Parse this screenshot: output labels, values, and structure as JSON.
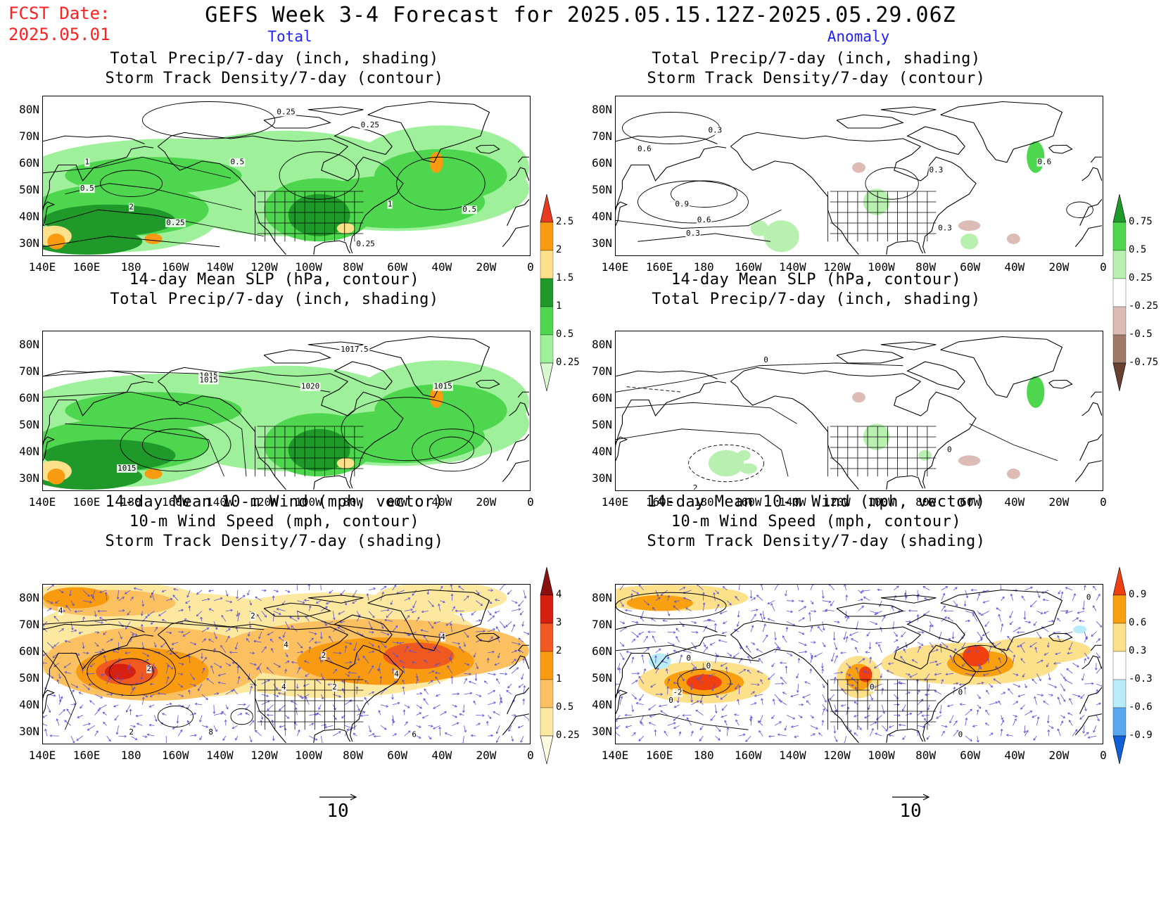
{
  "header": {
    "fcst_line1": "FCST Date:",
    "fcst_line2": "2025.05.01",
    "title": "GEFS Week 3-4 Forecast for 2025.05.15.12Z-2025.05.29.06Z",
    "col_total": "Total",
    "col_anomaly": "Anomaly"
  },
  "axes": {
    "lat_labels": [
      "80N",
      "70N",
      "60N",
      "50N",
      "40N",
      "30N"
    ],
    "lon_labels": [
      "140E",
      "160E",
      "180",
      "160W",
      "140W",
      "120W",
      "100W",
      "80W",
      "60W",
      "40W",
      "20W",
      "0"
    ]
  },
  "panels": {
    "p1": {
      "title1": "Total Precip/7-day (inch, shading)",
      "title2": "Storm Track Density/7-day (contour)"
    },
    "p2": {
      "title1": "Total Precip/7-day (inch, shading)",
      "title2": "Storm Track Density/7-day (contour)"
    },
    "p3": {
      "title1": "14-day Mean SLP (hPa, contour)",
      "title2": "Total Precip/7-day (inch, shading)"
    },
    "p4": {
      "title1": "14-day Mean SLP (hPa, contour)",
      "title2": "Total Precip/7-day (inch, shading)"
    },
    "p5": {
      "title1": "14-day Mean 10-m Wind (mph, vector)",
      "title2": "10-m Wind Speed (mph, contour)",
      "title3": "Storm Track Density/7-day (shading)"
    },
    "p6": {
      "title1": "14-day Mean 10-m Wind (mph, vector)",
      "title2": "10-m Wind Speed (mph, contour)",
      "title3": "Storm Track Density/7-day (shading)"
    }
  },
  "contour_labels": {
    "p1": [
      "0.25",
      "0.5",
      "1",
      "2",
      "0.25",
      "0.5",
      "1",
      "0.5",
      "0.25",
      "0.25"
    ],
    "p2": [
      "0.3",
      "0.6",
      "0.9",
      "0.6",
      "0.3",
      "0.3",
      "0.6",
      "0.3"
    ],
    "p3": [
      "1017.5",
      "1015",
      "1015",
      "1020",
      "1015",
      "1015"
    ],
    "p4": [
      "0",
      "0",
      "2"
    ],
    "p5": [
      "4",
      "2",
      "2",
      "4",
      "2",
      "4",
      "2",
      "4",
      "6",
      "8",
      "2",
      "4"
    ],
    "p6": [
      "0",
      "0",
      "-2",
      "0",
      "0",
      "0",
      "0",
      "0"
    ]
  },
  "colorbars": {
    "precip_total": {
      "labels": [
        "2.5",
        "2",
        "1.5",
        "1",
        "0.5",
        "0.25"
      ],
      "colors": [
        "#e83a1e",
        "#f89b10",
        "#fde08a",
        "#1f9a2a",
        "#4fd64f",
        "#9ef09a",
        "#d8f8d0"
      ]
    },
    "precip_anom": {
      "labels": [
        "0.75",
        "0.5",
        "0.25",
        "-0.25",
        "-0.5",
        "-0.75"
      ],
      "colors": [
        "#1f9a2a",
        "#4fd64f",
        "#b8f0b0",
        "#ffffff",
        "#dcbcb4",
        "#a07868",
        "#6a4030"
      ]
    },
    "storm_total": {
      "labels": [
        "4",
        "3",
        "2",
        "1",
        "0.5",
        "0.25"
      ],
      "colors": [
        "#8a1010",
        "#d82010",
        "#f05a20",
        "#f89b10",
        "#fbc060",
        "#fde8a0",
        "#fffbe0"
      ]
    },
    "storm_anom": {
      "labels": [
        "0.9",
        "0.6",
        "0.3",
        "-0.3",
        "-0.6",
        "-0.9"
      ],
      "colors": [
        "#f04010",
        "#f8a010",
        "#fde08a",
        "#ffffff",
        "#b8ecf8",
        "#58a8f0",
        "#1060d8"
      ]
    }
  },
  "reference_vector": {
    "label_left": "10",
    "label_right": "10"
  }
}
